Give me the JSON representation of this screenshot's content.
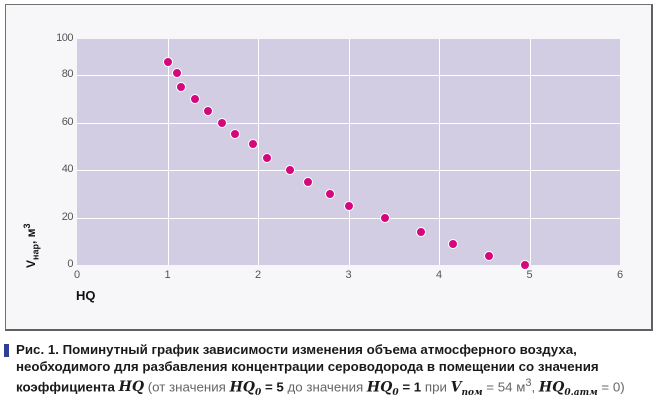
{
  "chart_data": {
    "type": "scatter",
    "title": "",
    "xlabel": "HQ",
    "ylabel": "Vнар, м3",
    "xlim": [
      0,
      6
    ],
    "ylim": [
      0,
      100
    ],
    "x_ticks": [
      "0",
      "1",
      "2",
      "3",
      "4",
      "5",
      "6"
    ],
    "y_ticks": [
      "0",
      "20",
      "40",
      "60",
      "80",
      "100"
    ],
    "grid": true,
    "legend": null,
    "series": [
      {
        "name": "Vнар",
        "color": "#d4087c",
        "points": [
          {
            "x": 1.0,
            "y": 87
          },
          {
            "x": 1.1,
            "y": 81
          },
          {
            "x": 1.15,
            "y": 75
          },
          {
            "x": 1.3,
            "y": 70
          },
          {
            "x": 1.45,
            "y": 65
          },
          {
            "x": 1.6,
            "y": 60
          },
          {
            "x": 1.75,
            "y": 55
          },
          {
            "x": 1.95,
            "y": 51
          },
          {
            "x": 2.1,
            "y": 45
          },
          {
            "x": 2.35,
            "y": 40
          },
          {
            "x": 2.55,
            "y": 35
          },
          {
            "x": 2.8,
            "y": 30
          },
          {
            "x": 3.0,
            "y": 25
          },
          {
            "x": 3.4,
            "y": 20
          },
          {
            "x": 3.8,
            "y": 14
          },
          {
            "x": 4.15,
            "y": 9
          },
          {
            "x": 4.55,
            "y": 4
          },
          {
            "x": 4.95,
            "y": 0
          }
        ]
      }
    ]
  },
  "axes": {
    "ylabel_main": "V",
    "ylabel_sub": "нар",
    "ylabel_unit": ", м",
    "ylabel_sup": "3",
    "xlabel": "HQ"
  },
  "colors": {
    "plot_bg": "#d3cde4",
    "point": "#d4087c",
    "caption_marker": "#2f3f95"
  },
  "caption": {
    "bold_part": "Рис. 1. Поминутный график зависимости изменения объема атмосферного воздуха, необходимого для разбавления концентрации сероводорода в помещении со значения коэффициента ",
    "hq": "HQ",
    "p1": " (от значения ",
    "hq0_a": "HQ",
    "sub0_a": "0",
    "eq5": " = 5 ",
    "p2": "до значения ",
    "hq0_b": "HQ",
    "sub0_b": "0",
    "eq1": " = 1 ",
    "p3": "при ",
    "v": "V",
    "v_sub": "пом",
    "eq54": " = 54 м",
    "sup3": "3",
    "comma": ", ",
    "hq0_c": "HQ",
    "sub0_c": "0.атм",
    "eq0": " = 0)"
  }
}
